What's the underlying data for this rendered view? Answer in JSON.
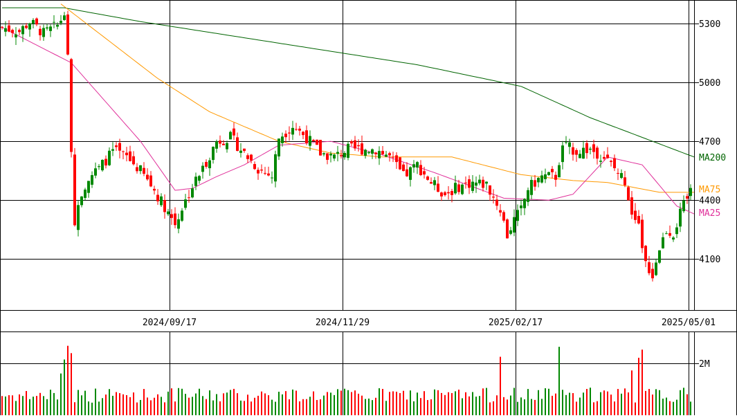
{
  "chart_data": [
    {
      "type": "candlestick",
      "title": "",
      "price_axis": {
        "ticks": [
          "5300",
          "5000",
          "4700",
          "4400",
          "4100"
        ],
        "range": [
          3840,
          5420
        ]
      },
      "date_ticks": [
        "2024/09/17",
        "2024/11/29",
        "2025/02/17",
        "2025/05/01"
      ],
      "legend": [
        {
          "label": "MA200",
          "color": "#006400"
        },
        {
          "label": "MA75",
          "color": "#ff9900"
        },
        {
          "label": "MA25",
          "color": "#e0309a"
        }
      ],
      "colors": {
        "up": "#008800",
        "down": "#ff0000"
      },
      "bars": 200,
      "ma200_approx": [
        [
          0,
          5380
        ],
        [
          18,
          5380
        ],
        [
          40,
          5310
        ],
        [
          80,
          5200
        ],
        [
          120,
          5090
        ],
        [
          150,
          4980
        ],
        [
          170,
          4820
        ],
        [
          200,
          4620
        ]
      ],
      "ma75_approx": [
        [
          17,
          5400
        ],
        [
          45,
          5020
        ],
        [
          60,
          4850
        ],
        [
          80,
          4700
        ],
        [
          95,
          4640
        ],
        [
          110,
          4620
        ],
        [
          130,
          4620
        ],
        [
          150,
          4530
        ],
        [
          165,
          4500
        ],
        [
          175,
          4490
        ],
        [
          190,
          4440
        ],
        [
          200,
          4440
        ]
      ],
      "ma25_approx": [
        [
          0,
          5280
        ],
        [
          20,
          5100
        ],
        [
          30,
          4900
        ],
        [
          40,
          4700
        ],
        [
          50,
          4450
        ],
        [
          55,
          4460
        ],
        [
          62,
          4520
        ],
        [
          70,
          4580
        ],
        [
          80,
          4680
        ],
        [
          95,
          4700
        ],
        [
          110,
          4630
        ],
        [
          125,
          4540
        ],
        [
          145,
          4410
        ],
        [
          158,
          4400
        ],
        [
          165,
          4430
        ],
        [
          175,
          4620
        ],
        [
          185,
          4580
        ],
        [
          195,
          4370
        ],
        [
          200,
          4330
        ]
      ]
    },
    {
      "type": "bar",
      "title": "",
      "y_ticks": [
        "2M"
      ],
      "note": "daily volume, red on down days, green on up days"
    }
  ]
}
